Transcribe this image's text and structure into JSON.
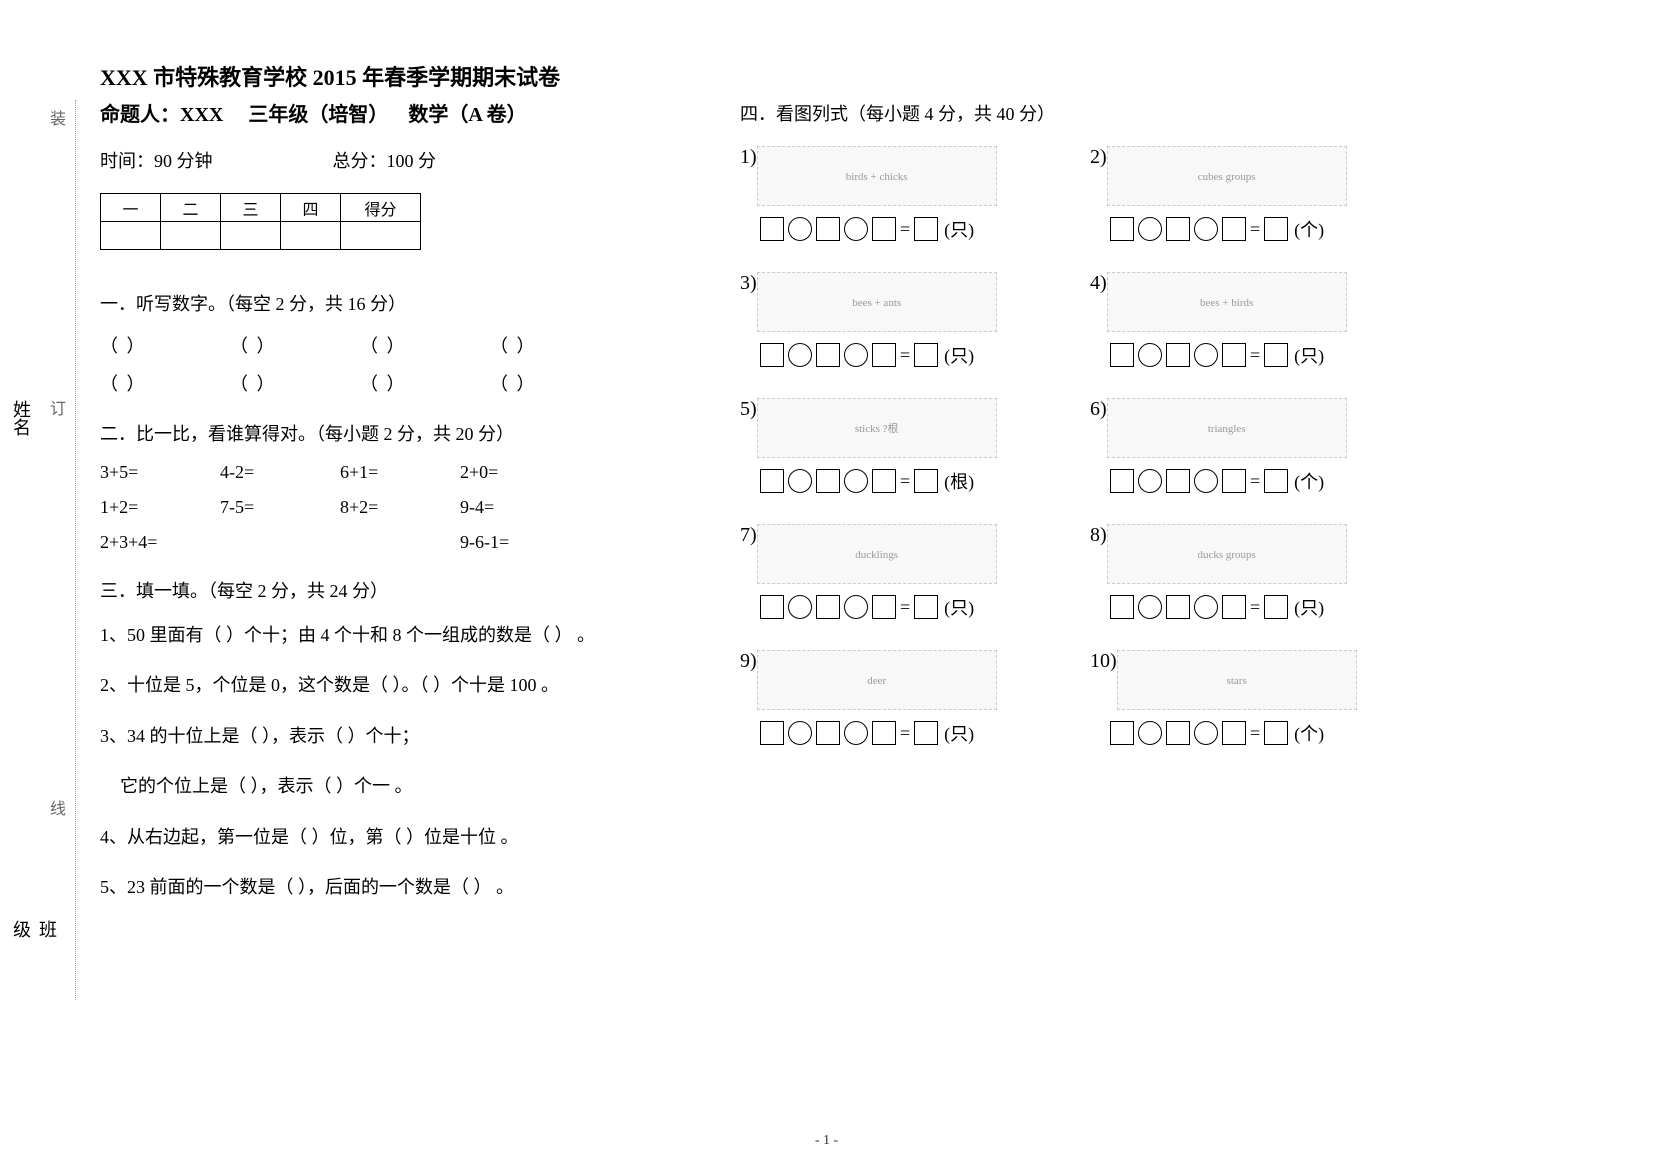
{
  "header": {
    "title1": "XXX 市特殊教育学校 2015 年春季学期期末试卷",
    "title2_author": "命题人：XXX",
    "title2_grade": "三年级（培智）",
    "title2_subject": "数学（A 卷）",
    "time_label": "时间：90 分钟",
    "total_label": "总分：100 分"
  },
  "binding": {
    "zhuang": "装",
    "ding": "订",
    "xian": "线",
    "name_label": "姓名",
    "class_label": "班级"
  },
  "score_table": {
    "headers": [
      "一",
      "二",
      "三",
      "四",
      "得分"
    ]
  },
  "section1": {
    "heading": "一．听写数字。（每空 2 分，共 16 分）",
    "blank": "（        ）"
  },
  "section2": {
    "heading": "二．比一比，看谁算得对。（每小题 2 分，共 20 分）",
    "row1": [
      "3+5=",
      "4-2=",
      "6+1=",
      "2+0="
    ],
    "row2": [
      "1+2=",
      "7-5=",
      "8+2=",
      "9-4="
    ],
    "row3": [
      "2+3+4=",
      "",
      "",
      "9-6-1="
    ]
  },
  "section3": {
    "heading": "三．填一填。（每空 2 分，共 24 分）",
    "q1": "1、50 里面有（    ）个十；由 4 个十和 8 个一组成的数是（    ） 。",
    "q2": "2、十位是 5，个位是 0，这个数是（    ）。（    ）个十是 100 。",
    "q3a": "3、34 的十位上是（    ），表示（    ）个十；",
    "q3b": "    它的个位上是（    ），表示（    ）个一 。",
    "q4": "4、从右边起，第一位是（    ）位，第（    ）位是十位 。",
    "q5": "5、23 前面的一个数是（    ），后面的一个数是（    ） 。"
  },
  "section4": {
    "heading": "四．看图列式（每小题 4 分，共 40 分）",
    "problems": [
      {
        "num": "1)",
        "desc": "birds + chicks",
        "unit": "(只)"
      },
      {
        "num": "2)",
        "desc": "cubes groups",
        "unit": "(个)"
      },
      {
        "num": "3)",
        "desc": "bees + ants",
        "unit": "(只)"
      },
      {
        "num": "4)",
        "desc": "bees + birds",
        "unit": "(只)"
      },
      {
        "num": "5)",
        "desc": "sticks ?根",
        "unit": "(根)"
      },
      {
        "num": "6)",
        "desc": "triangles",
        "unit": "(个)"
      },
      {
        "num": "7)",
        "desc": "ducklings",
        "unit": "(只)"
      },
      {
        "num": "8)",
        "desc": "ducks groups",
        "unit": "(只)"
      },
      {
        "num": "9)",
        "desc": "deer",
        "unit": "(只)"
      },
      {
        "num": "10)",
        "desc": "stars",
        "unit": "(个)"
      }
    ]
  },
  "footer": {
    "page": "- 1 -"
  }
}
